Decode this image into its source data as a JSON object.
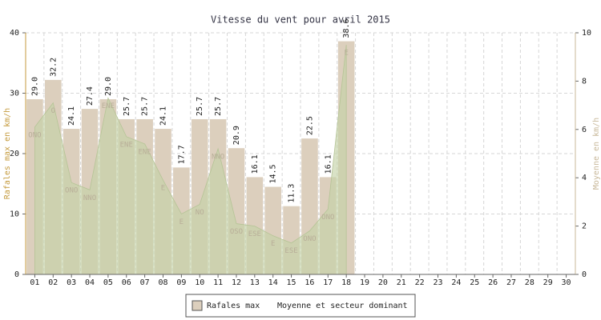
{
  "chart_data": {
    "type": "bar",
    "title": "Vitesse du vent pour avril 2015",
    "y_label": "Rafales max en km/h",
    "y2_label": "Moyenne en km/h",
    "categories": [
      "01",
      "02",
      "03",
      "04",
      "05",
      "06",
      "07",
      "08",
      "09",
      "10",
      "11",
      "12",
      "13",
      "14",
      "15",
      "16",
      "17",
      "18",
      "19",
      "20",
      "21",
      "22",
      "23",
      "24",
      "25",
      "26",
      "27",
      "28",
      "29",
      "30"
    ],
    "series": [
      {
        "name": "Rafales max",
        "type": "bar",
        "color": "#dccfbd",
        "values": [
          29.0,
          32.2,
          24.1,
          27.4,
          29.0,
          25.7,
          25.7,
          24.1,
          17.7,
          25.7,
          25.7,
          20.9,
          16.1,
          14.5,
          11.3,
          22.5,
          16.1,
          38.6,
          null,
          null,
          null,
          null,
          null,
          null,
          null,
          null,
          null,
          null,
          null,
          null
        ],
        "value_labels": [
          "29.0",
          "32.2",
          "24.1",
          "27.4",
          "29.0",
          "25.7",
          "25.7",
          "24.1",
          "17.7",
          "25.7",
          "25.7",
          "20.9",
          "16.1",
          "14.5",
          "11.3",
          "22.5",
          "16.1",
          "38.6",
          null,
          null,
          null,
          null,
          null,
          null,
          null,
          null,
          null,
          null,
          null,
          null
        ]
      },
      {
        "name": "Moyenne et secteur dominant",
        "type": "area",
        "axis": "y2",
        "color": "#c5d2a8",
        "values": [
          6.1,
          7.1,
          3.8,
          3.5,
          7.3,
          5.7,
          5.4,
          3.9,
          2.5,
          2.9,
          5.2,
          2.1,
          2.0,
          1.6,
          1.3,
          1.8,
          2.7,
          9.5,
          null,
          null,
          null,
          null,
          null,
          null,
          null,
          null,
          null,
          null,
          null,
          null
        ],
        "point_labels": [
          "ONO",
          "O",
          "ONO",
          "NNO",
          "ENE",
          "ENE",
          "ENE",
          "E",
          "E",
          "NO",
          "NNO",
          "OSO",
          "ESE",
          "E",
          "ESE",
          "ONO",
          "ONO",
          "E",
          null,
          null,
          null,
          null,
          null,
          null,
          null,
          null,
          null,
          null,
          null,
          null
        ]
      }
    ],
    "ylim": [
      0,
      40
    ],
    "yticks": [
      0,
      10,
      20,
      30,
      40
    ],
    "y2lim": [
      0,
      10
    ],
    "y2ticks": [
      0,
      2,
      4,
      6,
      8,
      10
    ],
    "grid": true,
    "legend": "bottom"
  }
}
